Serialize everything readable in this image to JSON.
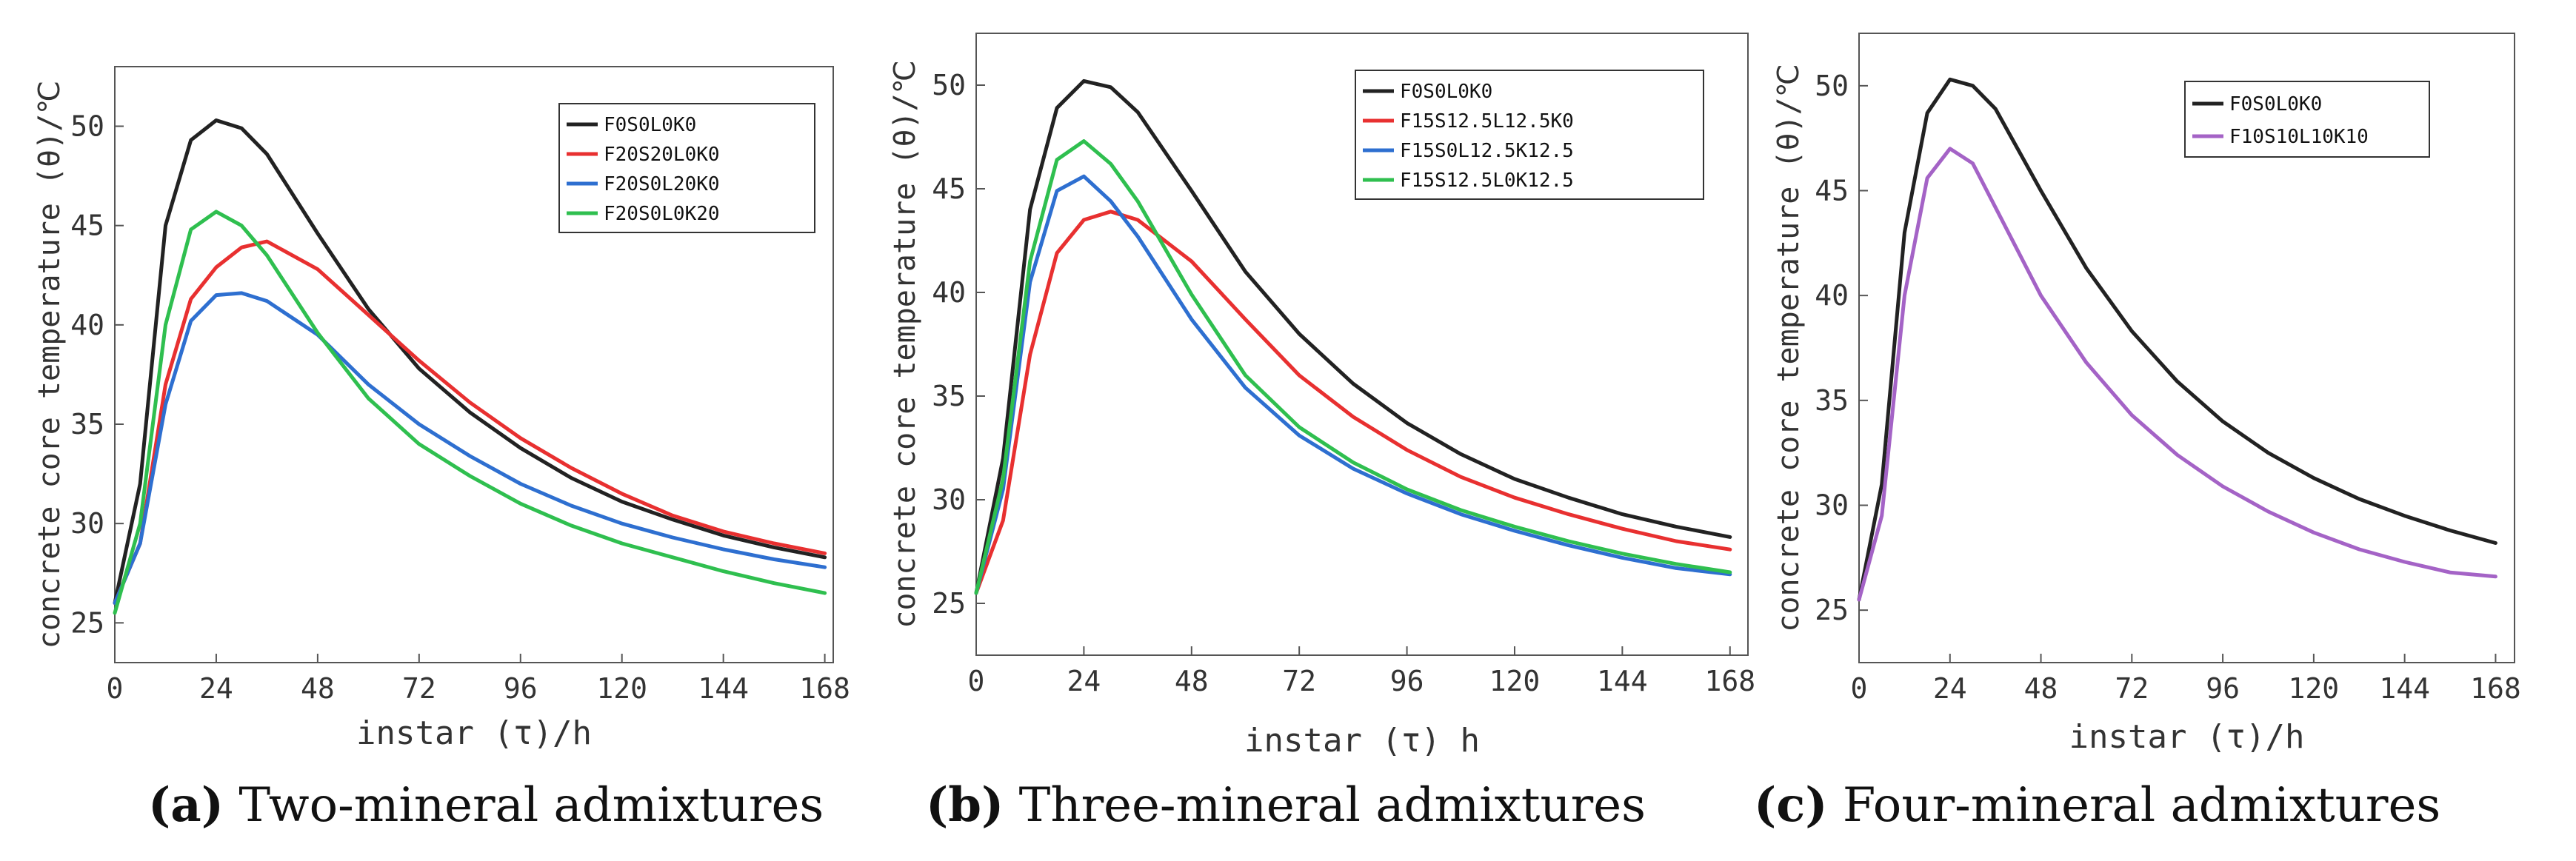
{
  "chart_data": [
    {
      "type": "line",
      "ylabel": "concrete core temperature (θ)/℃",
      "xlabel": "instar (τ)/h",
      "xticks": [
        0,
        24,
        48,
        72,
        96,
        120,
        144,
        168
      ],
      "yticks": [
        25,
        30,
        35,
        40,
        45,
        50
      ],
      "xlim": [
        0,
        170
      ],
      "ylim": [
        23,
        53
      ],
      "caption_label": "(a)",
      "caption_text": "Two-mineral admixtures",
      "series": [
        {
          "name": "F0S0L0K0",
          "color": "#222222",
          "x": [
            0,
            6,
            12,
            18,
            24,
            30,
            36,
            48,
            60,
            72,
            84,
            96,
            108,
            120,
            132,
            144,
            156,
            168
          ],
          "y": [
            26.0,
            32.0,
            45.0,
            49.3,
            50.3,
            49.9,
            48.6,
            44.6,
            40.8,
            37.8,
            35.6,
            33.8,
            32.3,
            31.1,
            30.2,
            29.4,
            28.8,
            28.3
          ]
        },
        {
          "name": "F20S20L0K0",
          "color": "#e83030",
          "x": [
            0,
            6,
            12,
            18,
            24,
            30,
            36,
            48,
            60,
            72,
            84,
            96,
            108,
            120,
            132,
            144,
            156,
            168
          ],
          "y": [
            26.0,
            29.0,
            37.0,
            41.3,
            42.9,
            43.9,
            44.2,
            42.8,
            40.5,
            38.2,
            36.1,
            34.3,
            32.8,
            31.5,
            30.4,
            29.6,
            29.0,
            28.5
          ]
        },
        {
          "name": "F20S0L20K0",
          "color": "#2e6fd0",
          "x": [
            0,
            6,
            12,
            18,
            24,
            30,
            36,
            48,
            60,
            72,
            84,
            96,
            108,
            120,
            132,
            144,
            156,
            168
          ],
          "y": [
            26.0,
            29.0,
            36.0,
            40.2,
            41.5,
            41.6,
            41.2,
            39.5,
            37.0,
            35.0,
            33.4,
            32.0,
            30.9,
            30.0,
            29.3,
            28.7,
            28.2,
            27.8
          ]
        },
        {
          "name": "F20S0L0K20",
          "color": "#2fbf4f",
          "x": [
            0,
            6,
            12,
            18,
            24,
            30,
            36,
            48,
            60,
            72,
            84,
            96,
            108,
            120,
            132,
            144,
            156,
            168
          ],
          "y": [
            25.5,
            30.0,
            40.0,
            44.8,
            45.7,
            45.0,
            43.5,
            39.6,
            36.3,
            34.0,
            32.4,
            31.0,
            29.9,
            29.0,
            28.3,
            27.6,
            27.0,
            26.5
          ]
        }
      ]
    },
    {
      "type": "line",
      "ylabel": "concrete core temperature (θ)/℃",
      "xlabel": "instar (τ) h",
      "xticks": [
        0,
        24,
        48,
        72,
        96,
        120,
        144,
        168
      ],
      "yticks": [
        25,
        30,
        35,
        40,
        45,
        50
      ],
      "xlim": [
        0,
        172
      ],
      "ylim": [
        22.5,
        52.5
      ],
      "caption_label": "(b)",
      "caption_text": "Three-mineral admixtures",
      "series": [
        {
          "name": "F0S0L0K0",
          "color": "#222222",
          "x": [
            0,
            6,
            12,
            18,
            24,
            30,
            36,
            48,
            60,
            72,
            84,
            96,
            108,
            120,
            132,
            144,
            156,
            168
          ],
          "y": [
            25.5,
            32.0,
            44.0,
            48.9,
            50.2,
            49.9,
            48.7,
            44.9,
            41.0,
            38.0,
            35.6,
            33.7,
            32.2,
            31.0,
            30.1,
            29.3,
            28.7,
            28.2
          ]
        },
        {
          "name": "F15S12.5L12.5K0",
          "color": "#e83030",
          "x": [
            0,
            6,
            12,
            18,
            24,
            30,
            36,
            48,
            60,
            72,
            84,
            96,
            108,
            120,
            132,
            144,
            156,
            168
          ],
          "y": [
            25.5,
            29.0,
            37.0,
            41.9,
            43.5,
            43.9,
            43.5,
            41.5,
            38.7,
            36.0,
            34.0,
            32.4,
            31.1,
            30.1,
            29.3,
            28.6,
            28.0,
            27.6
          ]
        },
        {
          "name": "F15S0L12.5K12.5",
          "color": "#2e6fd0",
          "x": [
            0,
            6,
            12,
            18,
            24,
            30,
            36,
            48,
            60,
            72,
            84,
            96,
            108,
            120,
            132,
            144,
            156,
            168
          ],
          "y": [
            25.5,
            30.5,
            40.5,
            44.9,
            45.6,
            44.4,
            42.7,
            38.7,
            35.4,
            33.1,
            31.5,
            30.3,
            29.3,
            28.5,
            27.8,
            27.2,
            26.7,
            26.4
          ]
        },
        {
          "name": "F15S12.5L0K12.5",
          "color": "#2fbf4f",
          "x": [
            0,
            6,
            12,
            18,
            24,
            30,
            36,
            48,
            60,
            72,
            84,
            96,
            108,
            120,
            132,
            144,
            156,
            168
          ],
          "y": [
            25.5,
            31.0,
            41.5,
            46.4,
            47.3,
            46.2,
            44.4,
            39.9,
            36.0,
            33.5,
            31.8,
            30.5,
            29.5,
            28.7,
            28.0,
            27.4,
            26.9,
            26.5
          ]
        }
      ]
    },
    {
      "type": "line",
      "ylabel": "concrete core temperature (θ)/℃",
      "xlabel": "instar (τ)/h",
      "xticks": [
        0,
        24,
        48,
        72,
        96,
        120,
        144,
        168
      ],
      "yticks": [
        25,
        30,
        35,
        40,
        45,
        50
      ],
      "xlim": [
        0,
        173
      ],
      "ylim": [
        22.5,
        52.5
      ],
      "caption_label": "(c)",
      "caption_text": "Four-mineral admixtures",
      "series": [
        {
          "name": "F0S0L0K0",
          "color": "#222222",
          "x": [
            0,
            6,
            12,
            18,
            24,
            30,
            36,
            48,
            60,
            72,
            84,
            96,
            108,
            120,
            132,
            144,
            156,
            168
          ],
          "y": [
            25.5,
            31.0,
            43.0,
            48.7,
            50.3,
            50.0,
            48.9,
            45.0,
            41.3,
            38.3,
            35.9,
            34.0,
            32.5,
            31.3,
            30.3,
            29.5,
            28.8,
            28.2
          ]
        },
        {
          "name": "F10S10L10K10",
          "color": "#a463c6",
          "x": [
            0,
            6,
            12,
            18,
            24,
            30,
            36,
            48,
            60,
            72,
            84,
            96,
            108,
            120,
            132,
            144,
            156,
            168
          ],
          "y": [
            25.5,
            29.5,
            40.0,
            45.6,
            47.0,
            46.3,
            44.2,
            40.0,
            36.8,
            34.3,
            32.4,
            30.9,
            29.7,
            28.7,
            27.9,
            27.3,
            26.8,
            26.6
          ]
        }
      ]
    }
  ]
}
